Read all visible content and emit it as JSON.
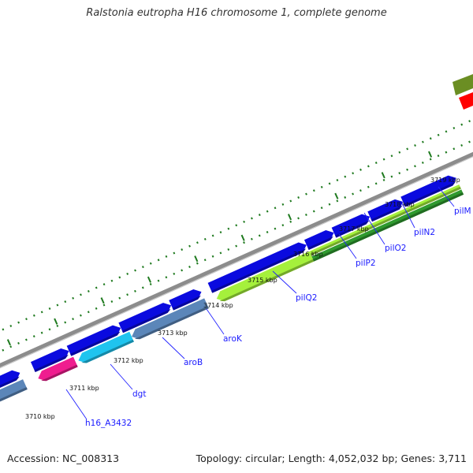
{
  "title": "Ralstonia eutropha H16 chromosome 1, complete genome",
  "footer": {
    "accession": "Accession: NC_008313",
    "summary": "Topology: circular; Length: 4,052,032 bp; Genes: 3,711"
  },
  "colors": {
    "backbone": "#8c8c8c",
    "cds_forward": "#0a0adf",
    "tick": "#1f7a1f",
    "gene_label": "#1a1aff"
  },
  "ticks": [
    {
      "label": "3710 kbp"
    },
    {
      "label": "3711 kbp"
    },
    {
      "label": "3712 kbp"
    },
    {
      "label": "3713 kbp"
    },
    {
      "label": "3714 kbp"
    },
    {
      "label": "3715 kbp"
    },
    {
      "label": "3716 kbp"
    },
    {
      "label": "3717 kbp"
    },
    {
      "label": "3718 kbp"
    },
    {
      "label": "3719 kbp"
    }
  ],
  "gene_labels": [
    {
      "name": "h16_A3432"
    },
    {
      "name": "dgt"
    },
    {
      "name": "aroB"
    },
    {
      "name": "aroK"
    },
    {
      "name": "pilQ2"
    },
    {
      "name": "pilP2"
    },
    {
      "name": "pilO2"
    },
    {
      "name": "pilN2"
    },
    {
      "name": "pilM"
    }
  ],
  "features": [
    {
      "strand": "forward",
      "color": "#0a0adf"
    },
    {
      "strand": "forward",
      "color": "#0a0adf"
    },
    {
      "strand": "forward",
      "color": "#0a0adf"
    },
    {
      "strand": "forward",
      "color": "#0a0adf"
    },
    {
      "strand": "forward",
      "color": "#0a0adf"
    },
    {
      "strand": "forward",
      "color": "#0a0adf"
    },
    {
      "strand": "forward",
      "color": "#0a0adf"
    },
    {
      "strand": "forward",
      "color": "#0a0adf"
    },
    {
      "strand": "forward",
      "color": "#0a0adf"
    },
    {
      "strand": "forward",
      "color": "#0a0adf"
    },
    {
      "strand": "reverse",
      "color": "#5b86b9"
    },
    {
      "strand": "reverse",
      "color": "#ef1d8f"
    },
    {
      "strand": "reverse",
      "color": "#1fc4ef"
    },
    {
      "strand": "reverse",
      "color": "#5b86b9"
    },
    {
      "strand": "reverse",
      "color": "#a5f03c"
    },
    {
      "strand": "reverse",
      "color": "#2f9a2f"
    },
    {
      "strand": "other",
      "color": "#6b8e23"
    },
    {
      "strand": "other",
      "color": "#ff0000"
    }
  ]
}
